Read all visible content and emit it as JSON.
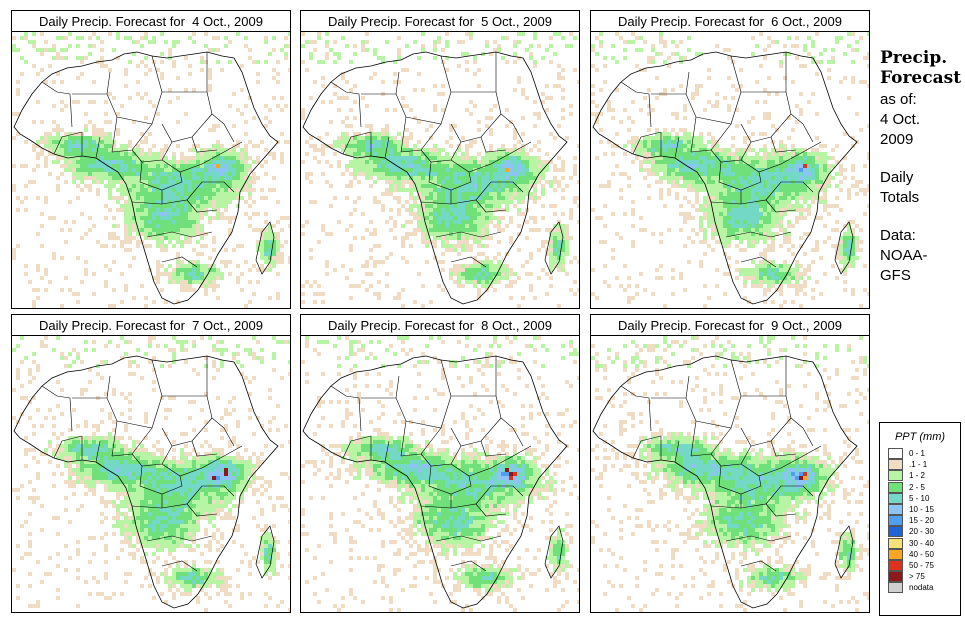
{
  "panels": [
    {
      "title": "Daily Precip. Forecast for  4 Oct., 2009",
      "day": 4
    },
    {
      "title": "Daily Precip. Forecast for  5 Oct., 2009",
      "day": 5
    },
    {
      "title": "Daily Precip. Forecast for  6 Oct., 2009",
      "day": 6
    },
    {
      "title": "Daily Precip. Forecast for  7 Oct., 2009",
      "day": 7
    },
    {
      "title": "Daily Precip. Forecast for  8 Oct., 2009",
      "day": 8
    },
    {
      "title": "Daily Precip. Forecast for  9 Oct., 2009",
      "day": 9
    }
  ],
  "info": {
    "heading1": "Precip.",
    "heading2": "Forecast",
    "asof": "as of:",
    "date1": "4 Oct.",
    "date2": "2009",
    "totals1": "Daily",
    "totals2": "Totals",
    "data_label": "Data:",
    "source1": "NOAA-",
    "source2": "GFS"
  },
  "legend": {
    "title": "PPT (mm)",
    "items": [
      {
        "label": "0 - 1",
        "color": "#ffffff"
      },
      {
        "label": ".1 - 1",
        "color": "#efdcc2"
      },
      {
        "label": "1 - 2",
        "color": "#b7f5a5"
      },
      {
        "label": "2 - 5",
        "color": "#6fe07a"
      },
      {
        "label": "5 - 10",
        "color": "#73d9c6"
      },
      {
        "label": "10 - 15",
        "color": "#8dc3f5"
      },
      {
        "label": "15 - 20",
        "color": "#4f9ff0"
      },
      {
        "label": "20 - 30",
        "color": "#1f63d6"
      },
      {
        "label": "30 - 40",
        "color": "#f5e27a"
      },
      {
        "label": "40 - 50",
        "color": "#f5a623"
      },
      {
        "label": "50 - 75",
        "color": "#e0301e"
      },
      {
        "label": "> 75",
        "color": "#8b1a1a"
      },
      {
        "label": "nodata",
        "color": "#d0d0d0"
      }
    ]
  }
}
